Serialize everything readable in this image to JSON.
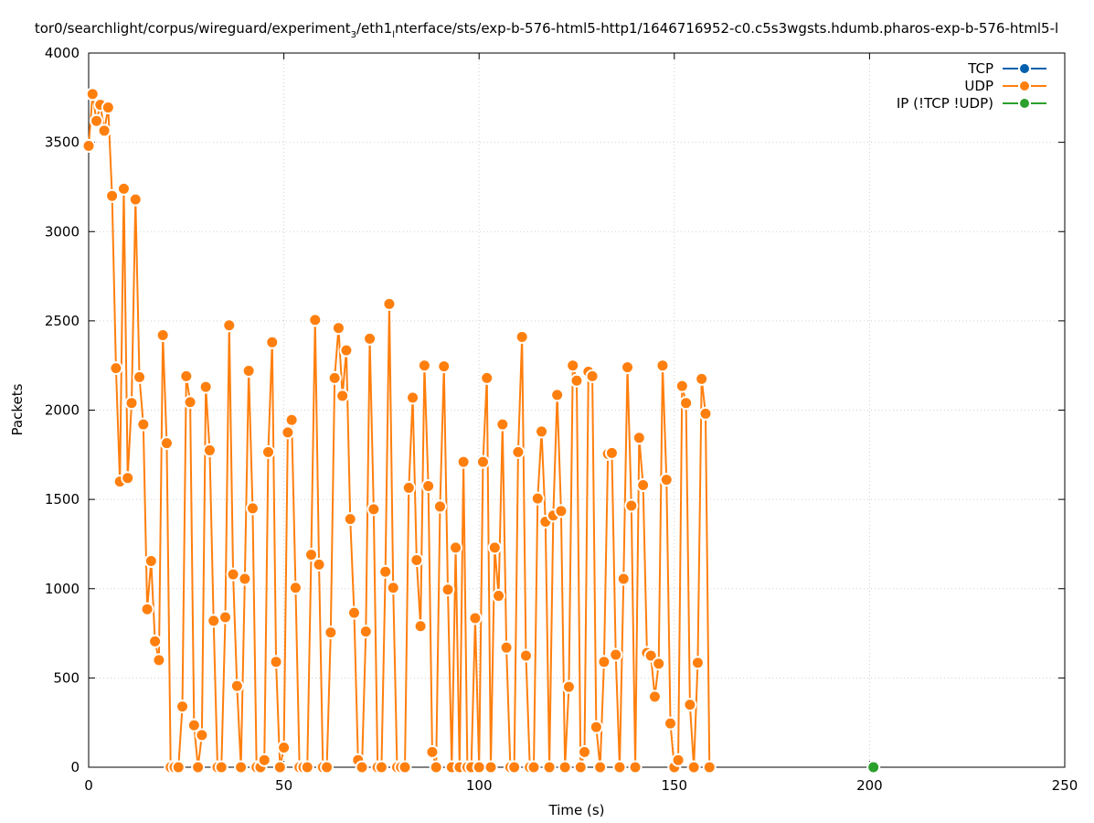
{
  "chart_data": {
    "type": "line",
    "title_parts": [
      "tor0/searchlight/corpus/wireguard/experiment",
      "3",
      "/eth1",
      "l",
      "nterface/sts/exp-b-576-html5-http1/1646716952-c0.c5s3wgsts.hdumb.pharos-exp-b-576-html5-l"
    ],
    "xlabel": "Time (s)",
    "ylabel": "Packets",
    "xlim": [
      0,
      250
    ],
    "ylim": [
      0,
      4000
    ],
    "xticks": [
      "0",
      "50",
      "100",
      "150",
      "200",
      "250"
    ],
    "yticks": [
      "0",
      "500",
      "1000",
      "1500",
      "2000",
      "2500",
      "3000",
      "3500",
      "4000"
    ],
    "grid": true,
    "legend_position": "top-right",
    "series": [
      {
        "name": "TCP",
        "color": "#0060ad",
        "points": []
      },
      {
        "name": "UDP",
        "color": "#ff7f0e",
        "points": [
          [
            0,
            3480
          ],
          [
            1,
            3770
          ],
          [
            2,
            3620
          ],
          [
            3,
            3710
          ],
          [
            4,
            3565
          ],
          [
            5,
            3695
          ],
          [
            6,
            3200
          ],
          [
            7,
            2235
          ],
          [
            8,
            1600
          ],
          [
            9,
            3240
          ],
          [
            10,
            1620
          ],
          [
            11,
            2040
          ],
          [
            12,
            3180
          ],
          [
            13,
            2185
          ],
          [
            14,
            1920
          ],
          [
            15,
            885
          ],
          [
            16,
            1155
          ],
          [
            17,
            705
          ],
          [
            18,
            600
          ],
          [
            19,
            2420
          ],
          [
            20,
            1815
          ],
          [
            21,
            0
          ],
          [
            22,
            0
          ],
          [
            23,
            0
          ],
          [
            24,
            340
          ],
          [
            25,
            2190
          ],
          [
            26,
            2045
          ],
          [
            27,
            235
          ],
          [
            28,
            0
          ],
          [
            29,
            180
          ],
          [
            30,
            2130
          ],
          [
            31,
            1775
          ],
          [
            32,
            820
          ],
          [
            33,
            0
          ],
          [
            34,
            0
          ],
          [
            35,
            840
          ],
          [
            36,
            2475
          ],
          [
            37,
            1080
          ],
          [
            38,
            455
          ],
          [
            39,
            0
          ],
          [
            40,
            1055
          ],
          [
            41,
            2220
          ],
          [
            42,
            1450
          ],
          [
            43,
            0
          ],
          [
            44,
            0
          ],
          [
            45,
            40
          ],
          [
            46,
            1765
          ],
          [
            47,
            2380
          ],
          [
            48,
            590
          ],
          [
            49,
            0
          ],
          [
            50,
            110
          ],
          [
            51,
            1875
          ],
          [
            52,
            1945
          ],
          [
            53,
            1005
          ],
          [
            54,
            0
          ],
          [
            55,
            0
          ],
          [
            56,
            0
          ],
          [
            57,
            1190
          ],
          [
            58,
            2505
          ],
          [
            59,
            1135
          ],
          [
            60,
            0
          ],
          [
            61,
            0
          ],
          [
            62,
            755
          ],
          [
            63,
            2180
          ],
          [
            64,
            2460
          ],
          [
            65,
            2080
          ],
          [
            66,
            2335
          ],
          [
            67,
            1390
          ],
          [
            68,
            865
          ],
          [
            69,
            40
          ],
          [
            70,
            0
          ],
          [
            71,
            760
          ],
          [
            72,
            2400
          ],
          [
            73,
            1445
          ],
          [
            74,
            0
          ],
          [
            75,
            0
          ],
          [
            76,
            1095
          ],
          [
            77,
            2595
          ],
          [
            78,
            1005
          ],
          [
            79,
            0
          ],
          [
            80,
            0
          ],
          [
            81,
            0
          ],
          [
            82,
            1565
          ],
          [
            83,
            2070
          ],
          [
            84,
            1160
          ],
          [
            85,
            790
          ],
          [
            86,
            2250
          ],
          [
            87,
            1575
          ],
          [
            88,
            85
          ],
          [
            89,
            0
          ],
          [
            90,
            1460
          ],
          [
            91,
            2245
          ],
          [
            92,
            995
          ],
          [
            93,
            0
          ],
          [
            94,
            1230
          ],
          [
            95,
            0
          ],
          [
            96,
            1710
          ],
          [
            97,
            0
          ],
          [
            98,
            0
          ],
          [
            99,
            835
          ],
          [
            100,
            0
          ],
          [
            101,
            1710
          ],
          [
            102,
            2180
          ],
          [
            103,
            0
          ],
          [
            104,
            1230
          ],
          [
            105,
            960
          ],
          [
            106,
            1920
          ],
          [
            107,
            670
          ],
          [
            108,
            0
          ],
          [
            109,
            0
          ],
          [
            110,
            1765
          ],
          [
            111,
            2410
          ],
          [
            112,
            625
          ],
          [
            113,
            0
          ],
          [
            114,
            0
          ],
          [
            115,
            1505
          ],
          [
            116,
            1880
          ],
          [
            117,
            1375
          ],
          [
            118,
            0
          ],
          [
            119,
            1410
          ],
          [
            120,
            2085
          ],
          [
            121,
            1435
          ],
          [
            122,
            0
          ],
          [
            123,
            450
          ],
          [
            124,
            2250
          ],
          [
            125,
            2165
          ],
          [
            126,
            0
          ],
          [
            127,
            85
          ],
          [
            128,
            2215
          ],
          [
            129,
            2190
          ],
          [
            130,
            225
          ],
          [
            131,
            0
          ],
          [
            132,
            590
          ],
          [
            133,
            1755
          ],
          [
            134,
            1760
          ],
          [
            135,
            630
          ],
          [
            136,
            0
          ],
          [
            137,
            1055
          ],
          [
            138,
            2240
          ],
          [
            139,
            1465
          ],
          [
            140,
            0
          ],
          [
            141,
            1845
          ],
          [
            142,
            1580
          ],
          [
            143,
            640
          ],
          [
            144,
            625
          ],
          [
            145,
            395
          ],
          [
            146,
            580
          ],
          [
            147,
            2250
          ],
          [
            148,
            1610
          ],
          [
            149,
            245
          ],
          [
            150,
            0
          ],
          [
            151,
            40
          ],
          [
            152,
            2135
          ],
          [
            153,
            2040
          ],
          [
            154,
            350
          ],
          [
            155,
            0
          ],
          [
            156,
            585
          ],
          [
            157,
            2175
          ],
          [
            158,
            1980
          ],
          [
            159,
            0
          ]
        ]
      },
      {
        "name": "IP (!TCP  !UDP)",
        "color": "#2ca02c",
        "points": [
          [
            201,
            0
          ]
        ]
      }
    ]
  }
}
